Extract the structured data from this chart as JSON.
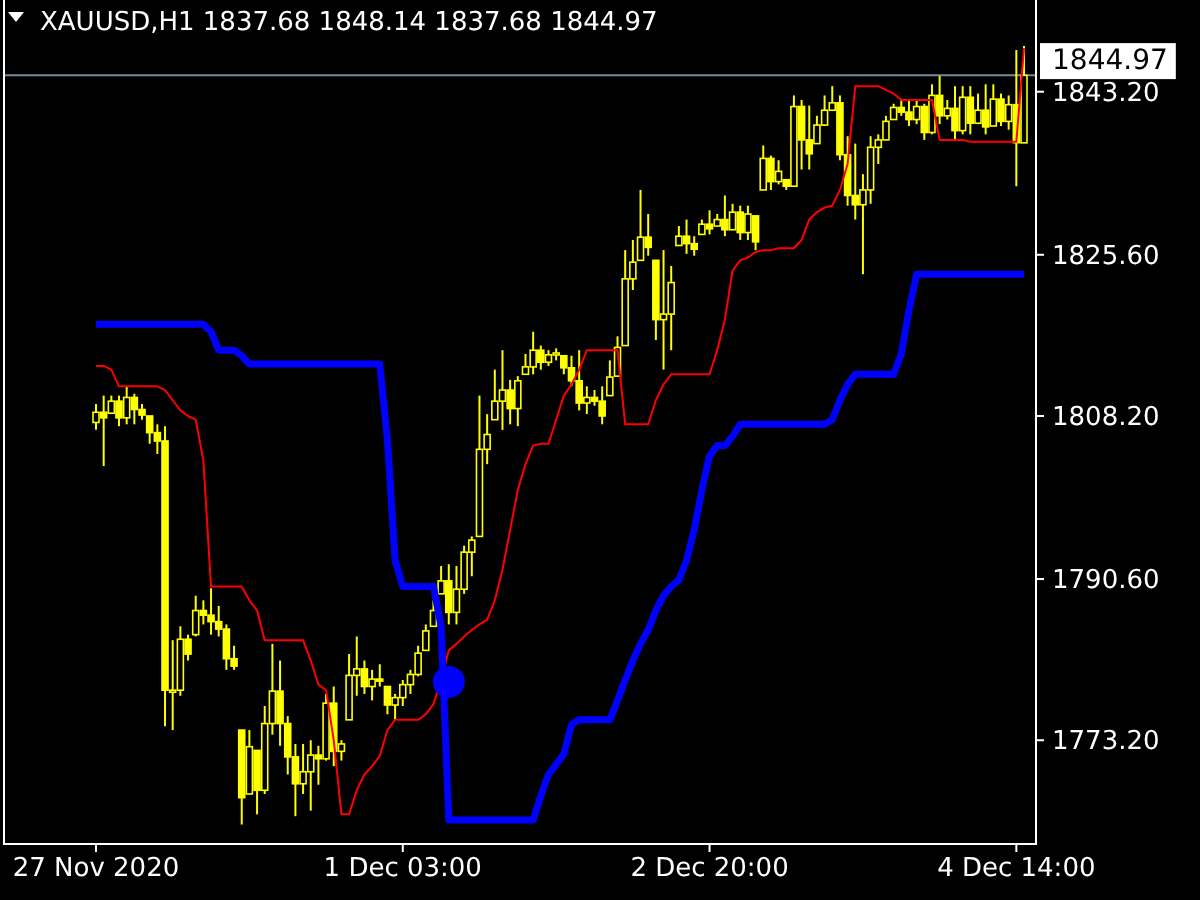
{
  "chart_data": {
    "type": "candlestick",
    "title": "XAUUSD,H1 1837.68 1848.14 1837.68 1844.97",
    "color": "#ffff00",
    "categories": [
      "27 Nov 2020",
      null,
      null,
      null,
      null,
      null,
      null,
      null,
      null,
      null,
      null,
      null,
      null,
      null,
      null,
      null,
      null,
      null,
      null,
      null,
      null,
      null,
      null,
      null,
      null,
      null,
      null,
      null,
      null,
      null,
      null,
      null,
      null,
      null,
      null,
      null,
      null,
      null,
      null,
      null,
      "1 Dec 03:00",
      null,
      null,
      null,
      null,
      null,
      null,
      null,
      null,
      null,
      null,
      null,
      null,
      null,
      null,
      null,
      null,
      null,
      null,
      null,
      null,
      null,
      null,
      null,
      null,
      null,
      null,
      null,
      null,
      null,
      null,
      null,
      null,
      null,
      null,
      null,
      null,
      null,
      null,
      null,
      "2 Dec 20:00",
      null,
      null,
      null,
      null,
      null,
      null,
      null,
      null,
      null,
      null,
      null,
      null,
      null,
      null,
      null,
      null,
      null,
      null,
      null,
      null,
      null,
      null,
      null,
      null,
      null,
      null,
      null,
      null,
      null,
      null,
      null,
      null,
      null,
      null,
      null,
      null,
      null,
      null,
      null,
      "4 Dec 14:00",
      null
    ],
    "ohlc": [
      [
        1807.5,
        1809.5,
        1806.7,
        1808.6
      ],
      [
        1808.6,
        1810.4,
        1802.8,
        1808.0
      ],
      [
        1808.5,
        1810.4,
        1808.4,
        1809.8
      ],
      [
        1809.8,
        1810.4,
        1807.1,
        1808.0
      ],
      [
        1808.0,
        1811.4,
        1807.3,
        1810.2
      ],
      [
        1810.2,
        1810.6,
        1807.3,
        1808.9
      ],
      [
        1808.9,
        1809.5,
        1807.8,
        1808.3
      ],
      [
        1808.2,
        1808.2,
        1805.2,
        1806.4
      ],
      [
        1806.4,
        1807.3,
        1804.1,
        1805.5
      ],
      [
        1805.5,
        1807.1,
        1774.7,
        1778.6
      ],
      [
        1778.6,
        1784.0,
        1774.3,
        1778.6
      ],
      [
        1778.6,
        1785.5,
        1778.0,
        1784.1
      ],
      [
        1784.1,
        1784.6,
        1781.8,
        1782.5
      ],
      [
        1784.6,
        1788.8,
        1784.4,
        1787.2
      ],
      [
        1787.2,
        1788.3,
        1785.7,
        1786.7
      ],
      [
        1786.7,
        1789.6,
        1784.6,
        1786.0
      ],
      [
        1786.0,
        1787.7,
        1784.4,
        1785.2
      ],
      [
        1785.2,
        1785.7,
        1780.8,
        1782.0
      ],
      [
        1782.0,
        1783.4,
        1780.8,
        1781.2
      ],
      [
        1774.3,
        1774.3,
        1764.1,
        1767.0
      ],
      [
        1767.4,
        1774.3,
        1767.4,
        1772.5
      ],
      [
        1772.1,
        1772.1,
        1765.2,
        1767.8
      ],
      [
        1767.8,
        1776.9,
        1767.4,
        1775.0
      ],
      [
        1775.0,
        1783.6,
        1773.8,
        1778.5
      ],
      [
        1778.5,
        1781.8,
        1772.6,
        1775.0
      ],
      [
        1775.0,
        1775.8,
        1769.5,
        1771.4
      ],
      [
        1771.4,
        1772.8,
        1765.0,
        1768.5
      ],
      [
        1768.5,
        1772.8,
        1767.4,
        1769.8
      ],
      [
        1769.8,
        1773.2,
        1765.6,
        1771.6
      ],
      [
        1771.6,
        1772.6,
        1768.4,
        1771.2
      ],
      [
        1771.2,
        1778.2,
        1771.0,
        1777.2
      ],
      [
        1777.2,
        1779.0,
        1770.4,
        1772.0
      ],
      [
        1772.0,
        1773.2,
        1771.0,
        1772.8
      ],
      [
        1775.4,
        1782.5,
        1775.4,
        1780.2
      ],
      [
        1780.2,
        1784.4,
        1778.0,
        1780.9
      ],
      [
        1780.9,
        1781.8,
        1778.2,
        1779.0
      ],
      [
        1779.0,
        1780.8,
        1777.5,
        1779.8
      ],
      [
        1779.8,
        1781.4,
        1779.0,
        1779.6
      ],
      [
        1779.0,
        1779.0,
        1776.0,
        1777.0
      ],
      [
        1777.0,
        1778.2,
        1775.4,
        1777.8
      ],
      [
        1777.8,
        1779.7,
        1776.9,
        1779.2
      ],
      [
        1779.2,
        1780.8,
        1778.2,
        1780.3
      ],
      [
        1780.3,
        1783.4,
        1780.1,
        1782.6
      ],
      [
        1782.9,
        1785.7,
        1782.9,
        1785.0
      ],
      [
        1785.5,
        1788.3,
        1785.5,
        1787.2
      ],
      [
        1789.0,
        1792.0,
        1789.0,
        1790.4
      ],
      [
        1790.4,
        1792.2,
        1785.7,
        1787.0
      ],
      [
        1787.0,
        1792.0,
        1785.7,
        1789.5
      ],
      [
        1789.5,
        1794.2,
        1789.0,
        1793.5
      ],
      [
        1793.5,
        1795.2,
        1790.9,
        1794.8
      ],
      [
        1795.2,
        1810.4,
        1795.2,
        1804.6
      ],
      [
        1804.6,
        1808.4,
        1803.0,
        1806.2
      ],
      [
        1807.8,
        1813.2,
        1807.8,
        1809.8
      ],
      [
        1809.8,
        1815.3,
        1806.7,
        1811.0
      ],
      [
        1811.0,
        1812.1,
        1807.3,
        1809.0
      ],
      [
        1809.0,
        1812.5,
        1807.1,
        1812.0
      ],
      [
        1812.7,
        1814.9,
        1812.7,
        1813.5
      ],
      [
        1813.5,
        1817.3,
        1812.7,
        1815.3
      ],
      [
        1815.3,
        1815.8,
        1813.2,
        1814.0
      ],
      [
        1814.0,
        1815.3,
        1813.6,
        1814.8
      ],
      [
        1814.8,
        1815.5,
        1814.2,
        1815.0
      ],
      [
        1814.7,
        1814.7,
        1812.7,
        1813.4
      ],
      [
        1813.4,
        1814.7,
        1811.4,
        1812.0
      ],
      [
        1812.0,
        1815.3,
        1808.8,
        1809.6
      ],
      [
        1809.6,
        1811.4,
        1808.4,
        1810.2
      ],
      [
        1810.2,
        1811.0,
        1809.3,
        1809.8
      ],
      [
        1809.8,
        1811.4,
        1807.3,
        1808.2
      ],
      [
        1810.4,
        1814.2,
        1810.4,
        1812.4
      ],
      [
        1812.5,
        1816.8,
        1812.5,
        1815.6
      ],
      [
        1815.8,
        1826.1,
        1815.8,
        1823.0
      ],
      [
        1823.0,
        1827.2,
        1821.8,
        1824.8
      ],
      [
        1825.0,
        1832.6,
        1825.0,
        1827.5
      ],
      [
        1827.5,
        1830.0,
        1825.5,
        1826.4
      ],
      [
        1825.0,
        1825.0,
        1816.4,
        1818.6
      ],
      [
        1818.6,
        1826.1,
        1813.2,
        1819.2
      ],
      [
        1819.2,
        1824.4,
        1815.3,
        1822.6
      ],
      [
        1826.6,
        1828.7,
        1826.6,
        1827.6
      ],
      [
        1827.6,
        1829.4,
        1825.7,
        1826.8
      ],
      [
        1826.8,
        1827.6,
        1825.5,
        1826.2
      ],
      [
        1827.8,
        1829.4,
        1827.8,
        1828.9
      ],
      [
        1828.9,
        1830.4,
        1827.8,
        1828.4
      ],
      [
        1828.7,
        1830.0,
        1828.7,
        1829.4
      ],
      [
        1829.4,
        1832.0,
        1827.6,
        1828.3
      ],
      [
        1828.3,
        1831.1,
        1828.3,
        1830.2
      ],
      [
        1830.2,
        1830.9,
        1827.2,
        1828.0
      ],
      [
        1828.0,
        1830.9,
        1827.2,
        1830.0
      ],
      [
        1829.8,
        1829.8,
        1826.1,
        1827.0
      ],
      [
        1832.6,
        1837.4,
        1832.6,
        1836.0
      ],
      [
        1836.0,
        1836.3,
        1832.6,
        1833.5
      ],
      [
        1833.5,
        1835.8,
        1833.2,
        1834.6
      ],
      [
        1833.7,
        1833.7,
        1832.6,
        1833.0
      ],
      [
        1833.0,
        1842.8,
        1833.0,
        1841.6
      ],
      [
        1841.6,
        1842.3,
        1834.8,
        1838.0
      ],
      [
        1838.0,
        1841.7,
        1834.8,
        1836.5
      ],
      [
        1837.6,
        1840.6,
        1837.6,
        1839.6
      ],
      [
        1839.6,
        1842.8,
        1839.5,
        1841.2
      ],
      [
        1841.2,
        1843.8,
        1841.2,
        1842.0
      ],
      [
        1842.0,
        1842.8,
        1835.8,
        1836.4
      ],
      [
        1836.4,
        1838.4,
        1830.9,
        1832.0
      ],
      [
        1832.0,
        1837.6,
        1829.4,
        1831.0
      ],
      [
        1831.0,
        1834.3,
        1823.5,
        1832.6
      ],
      [
        1832.6,
        1838.4,
        1831.1,
        1837.2
      ],
      [
        1837.2,
        1838.6,
        1835.4,
        1838.0
      ],
      [
        1838.0,
        1840.6,
        1838.0,
        1840.0
      ],
      [
        1840.2,
        1841.9,
        1840.2,
        1841.5
      ],
      [
        1841.5,
        1842.3,
        1840.6,
        1841.0
      ],
      [
        1841.0,
        1842.3,
        1839.5,
        1840.2
      ],
      [
        1840.2,
        1842.3,
        1839.7,
        1841.6
      ],
      [
        1841.6,
        1841.9,
        1838.0,
        1838.8
      ],
      [
        1838.8,
        1844.0,
        1838.6,
        1842.8
      ],
      [
        1842.8,
        1844.9,
        1839.7,
        1840.6
      ],
      [
        1840.6,
        1842.3,
        1840.2,
        1841.4
      ],
      [
        1841.4,
        1843.8,
        1838.0,
        1839.0
      ],
      [
        1839.0,
        1843.8,
        1838.6,
        1842.6
      ],
      [
        1842.6,
        1843.8,
        1838.6,
        1839.8
      ],
      [
        1839.8,
        1843.0,
        1839.7,
        1841.2
      ],
      [
        1841.2,
        1844.0,
        1838.6,
        1839.4
      ],
      [
        1839.5,
        1844.0,
        1839.5,
        1842.4
      ],
      [
        1842.4,
        1843.0,
        1839.5,
        1840.0
      ],
      [
        1840.0,
        1842.8,
        1839.1,
        1841.8
      ],
      [
        1841.8,
        1847.7,
        1833.0,
        1837.7
      ],
      [
        1837.68,
        1848.14,
        1837.68,
        1844.97
      ]
    ],
    "series": [
      {
        "type": "line",
        "color": "#ff0000",
        "values": [
          1813.6,
          1813.6,
          1813.2,
          1811.4,
          1811.4,
          1811.4,
          1811.4,
          1811.4,
          1811.4,
          1811.0,
          1809.9,
          1808.8,
          1808.2,
          1807.8,
          1803.4,
          1789.8,
          1789.8,
          1789.8,
          1789.8,
          1789.8,
          1788.3,
          1787.2,
          1784.0,
          1784.0,
          1784.0,
          1784.0,
          1784.0,
          1784.0,
          1781.8,
          1779.2,
          1778.6,
          1773.2,
          1765.2,
          1765.2,
          1767.8,
          1769.5,
          1770.4,
          1771.5,
          1774.3,
          1775.4,
          1775.4,
          1775.4,
          1775.4,
          1776.0,
          1777.1,
          1779.7,
          1782.9,
          1783.6,
          1784.4,
          1785.1,
          1785.7,
          1786.2,
          1788.3,
          1791.6,
          1795.9,
          1800.2,
          1803.0,
          1805.0,
          1805.2,
          1805.2,
          1807.8,
          1810.4,
          1811.6,
          1813.2,
          1815.3,
          1815.3,
          1815.3,
          1815.3,
          1815.3,
          1807.3,
          1807.3,
          1807.3,
          1807.3,
          1809.9,
          1811.6,
          1812.7,
          1812.7,
          1812.7,
          1812.7,
          1812.7,
          1812.7,
          1815.3,
          1818.6,
          1823.9,
          1825.0,
          1825.3,
          1825.9,
          1826.1,
          1826.1,
          1826.3,
          1826.3,
          1826.3,
          1827.2,
          1829.4,
          1830.2,
          1830.7,
          1830.9,
          1832.6,
          1835.4,
          1843.8,
          1843.8,
          1843.8,
          1843.8,
          1843.4,
          1843.0,
          1842.3,
          1842.3,
          1842.3,
          1842.3,
          1842.3,
          1838.0,
          1838.0,
          1838.0,
          1838.0,
          1837.8,
          1837.8,
          1837.8,
          1837.8,
          1837.8,
          1837.8,
          1837.8,
          1847.9
        ]
      },
      {
        "type": "line",
        "color": "#0000ff",
        "values": [
          1818.1,
          1818.1,
          1818.1,
          1818.1,
          1818.1,
          1818.1,
          1818.1,
          1818.1,
          1818.1,
          1818.1,
          1818.1,
          1818.1,
          1818.1,
          1818.1,
          1818.1,
          1817.3,
          1815.3,
          1815.3,
          1815.3,
          1814.7,
          1813.8,
          1813.8,
          1813.8,
          1813.8,
          1813.8,
          1813.8,
          1813.8,
          1813.8,
          1813.8,
          1813.8,
          1813.8,
          1813.8,
          1813.8,
          1813.8,
          1813.8,
          1813.8,
          1813.8,
          1813.8,
          1805.6,
          1792.6,
          1789.8,
          1789.8,
          1789.8,
          1789.8,
          1789.8,
          1785.5,
          1764.6,
          1764.6,
          1764.6,
          1764.6,
          1764.6,
          1764.6,
          1764.6,
          1764.6,
          1764.6,
          1764.6,
          1764.6,
          1764.6,
          1767.2,
          1769.5,
          1770.6,
          1771.7,
          1774.9,
          1775.4,
          1775.4,
          1775.4,
          1775.4,
          1775.4,
          1777.5,
          1779.7,
          1781.8,
          1783.6,
          1785.1,
          1787.2,
          1788.8,
          1789.8,
          1790.5,
          1792.6,
          1795.9,
          1800.2,
          1803.9,
          1805.0,
          1805.0,
          1806.0,
          1807.3,
          1807.3,
          1807.3,
          1807.3,
          1807.3,
          1807.3,
          1807.3,
          1807.3,
          1807.3,
          1807.3,
          1807.3,
          1807.3,
          1807.8,
          1809.9,
          1811.6,
          1812.7,
          1812.7,
          1812.7,
          1812.7,
          1812.7,
          1812.7,
          1814.9,
          1819.6,
          1823.5,
          1823.5,
          1823.5,
          1823.5,
          1823.5,
          1823.5,
          1823.5,
          1823.5,
          1823.5,
          1823.5,
          1823.5,
          1823.5,
          1823.5,
          1823.5,
          1823.5
        ]
      },
      {
        "type": "scatter",
        "color": "#0000ff",
        "marker": "circle",
        "values": [
          null,
          null,
          null,
          null,
          null,
          null,
          null,
          null,
          null,
          null,
          null,
          null,
          null,
          null,
          null,
          null,
          null,
          null,
          null,
          null,
          null,
          null,
          null,
          null,
          null,
          null,
          null,
          null,
          null,
          null,
          null,
          null,
          null,
          null,
          null,
          null,
          null,
          null,
          null,
          null,
          null,
          null,
          null,
          null,
          null,
          null,
          1779.5,
          null,
          null,
          null,
          null,
          null,
          null,
          null,
          null,
          null,
          null,
          null,
          null,
          null,
          null,
          null,
          null,
          null,
          null,
          null,
          null,
          null,
          null,
          null,
          null,
          null,
          null,
          null,
          null,
          null,
          null,
          null,
          null,
          null,
          null,
          null,
          null,
          null,
          null,
          null,
          null,
          null,
          null,
          null,
          null,
          null,
          null,
          null,
          null,
          null,
          null,
          null,
          null,
          null,
          null,
          null,
          null,
          null,
          null,
          null,
          null,
          null,
          null,
          null,
          null,
          null,
          null,
          null,
          null,
          null,
          null,
          null,
          null,
          null,
          null,
          null
        ]
      }
    ],
    "ylim": [
      1762.0,
      1853.1
    ],
    "yticks": [
      {
        "value": 1773.2,
        "label": "1773.20"
      },
      {
        "value": 1790.6,
        "label": "1790.60"
      },
      {
        "value": 1808.2,
        "label": "1808.20"
      },
      {
        "value": 1825.6,
        "label": "1825.60"
      },
      {
        "value": 1843.2,
        "label": "1843.20"
      }
    ],
    "ref_lines": [
      {
        "axis": "y",
        "value": 1844.97,
        "label": "1844.97",
        "color": "#778899"
      }
    ],
    "grid": false
  }
}
